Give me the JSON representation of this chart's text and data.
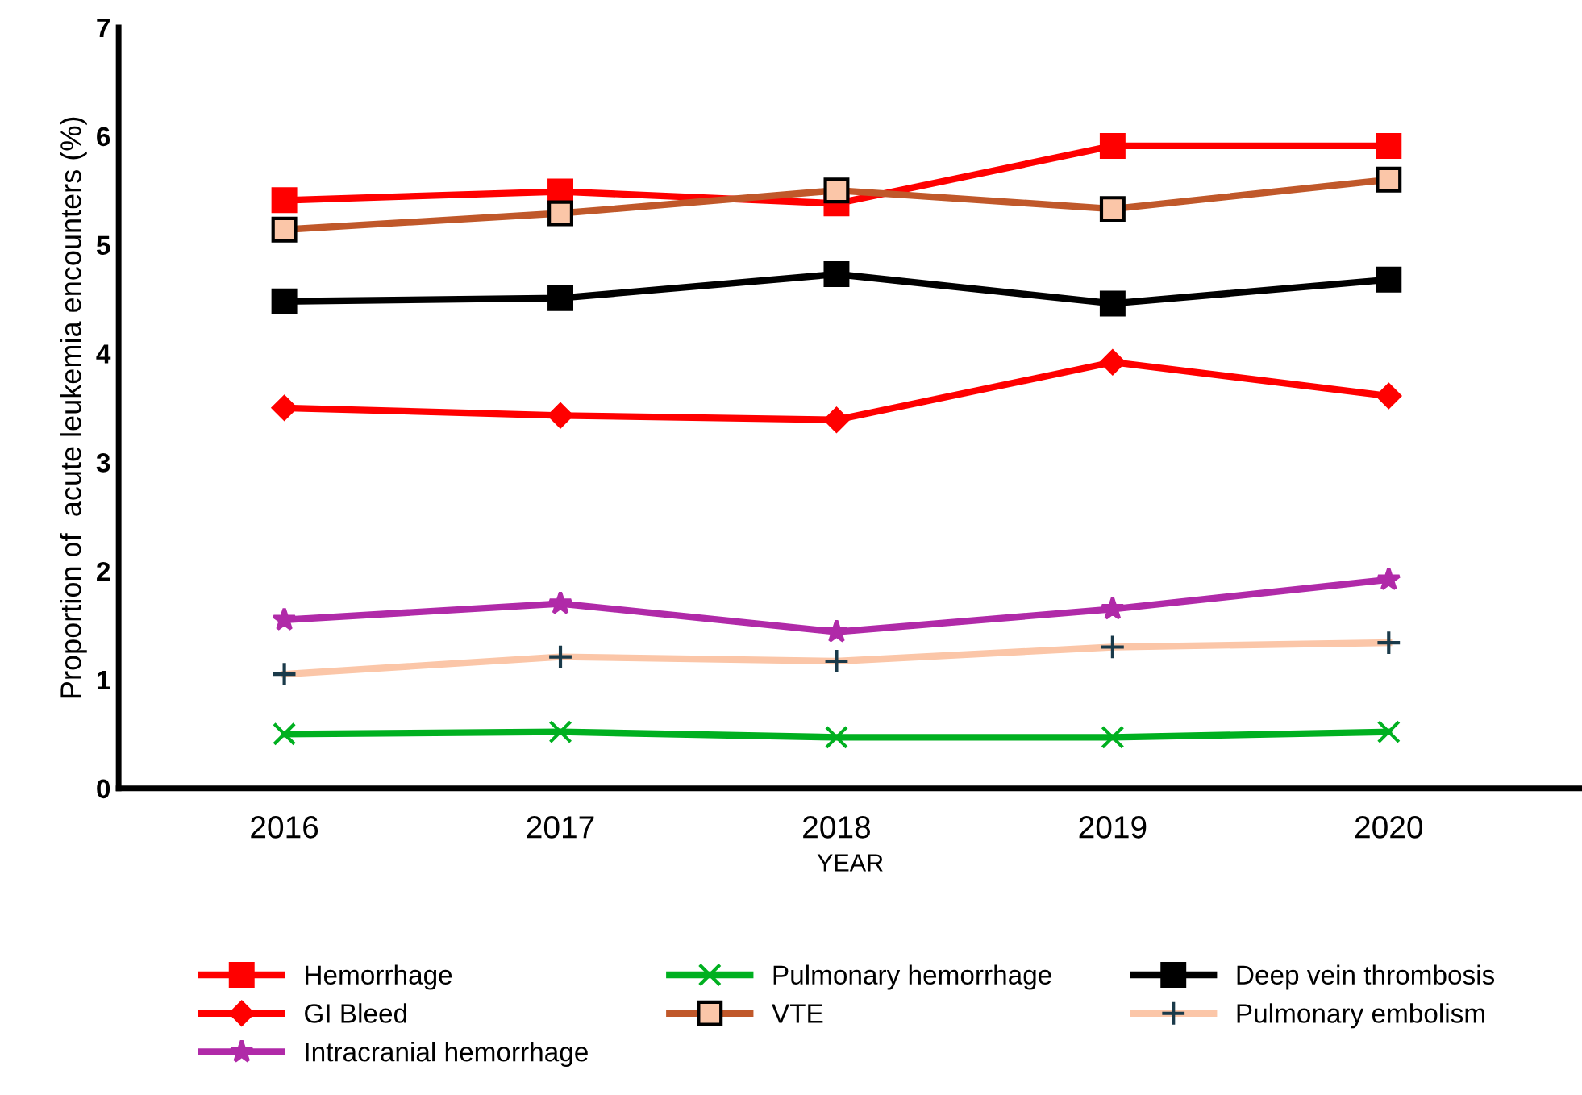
{
  "chart_data": {
    "type": "line",
    "xlabel": "YEAR",
    "ylabel": "Proportion of  acute leukemia encounters (%)",
    "categories": [
      "2016",
      "2017",
      "2018",
      "2019",
      "2020"
    ],
    "ylim": [
      0,
      7
    ],
    "yticks": [
      0,
      1,
      2,
      3,
      4,
      5,
      6,
      7
    ],
    "grid": false,
    "legend": "bottom",
    "line_style": "solid",
    "series": [
      {
        "name": "Hemorrhage",
        "color": "#ff0000",
        "marker": "square",
        "values": [
          5.41,
          5.49,
          5.38,
          5.91,
          5.91
        ]
      },
      {
        "name": "GI Bleed",
        "color": "#ff0000",
        "marker": "diamond",
        "values": [
          3.5,
          3.43,
          3.39,
          3.92,
          3.61
        ]
      },
      {
        "name": "Intracranial hemorrhage",
        "color": "#b02aa8",
        "marker": "star",
        "values": [
          1.55,
          1.7,
          1.44,
          1.65,
          1.92
        ]
      },
      {
        "name": "Pulmonary hemorrhage",
        "color": "#00b020",
        "marker": "cross",
        "values": [
          0.5,
          0.52,
          0.47,
          0.47,
          0.52
        ]
      },
      {
        "name": "VTE",
        "color": "#c0582a",
        "marker": "square",
        "values": [
          5.14,
          5.29,
          5.5,
          5.33,
          5.6
        ]
      },
      {
        "name": "Deep vein thrombosis",
        "color": "#000000",
        "marker": "square",
        "values": [
          4.48,
          4.51,
          4.73,
          4.46,
          4.68
        ]
      },
      {
        "name": "Pulmonary embolism",
        "color": "#fbc6a8",
        "marker": "plus",
        "values": [
          1.05,
          1.21,
          1.17,
          1.3,
          1.34
        ]
      }
    ]
  }
}
